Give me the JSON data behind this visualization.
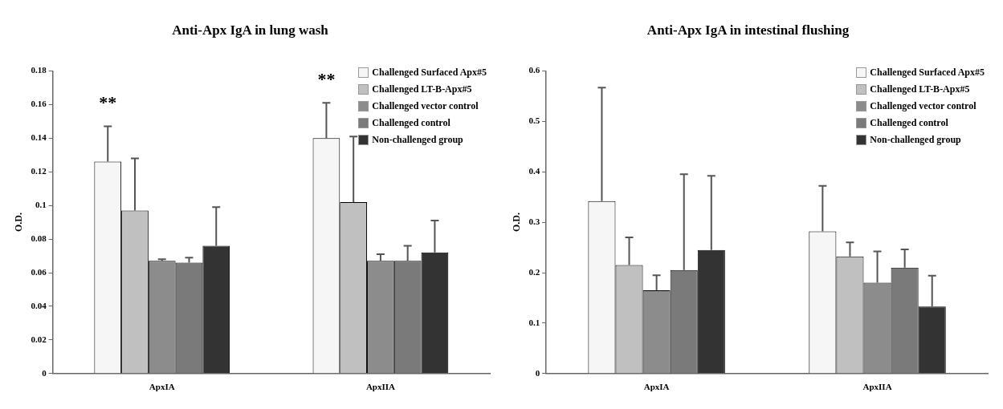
{
  "chart_data": [
    {
      "type": "bar",
      "title": "Anti-Apx IgA in lung wash",
      "ylabel": "O.D.",
      "categories": [
        "ApxIA",
        "ApxIIA"
      ],
      "ylim": [
        0,
        0.18
      ],
      "yticks": [
        0,
        0.02,
        0.04,
        0.06,
        0.08,
        0.1,
        0.12,
        0.14,
        0.16,
        0.18
      ],
      "grid": false,
      "legend": "top right",
      "series": [
        {
          "name": "Challenged Surfaced Apx#5",
          "color": "#f6f6f6",
          "values": [
            0.126,
            0.14
          ],
          "errors": [
            [
              0.126,
              0.147
            ],
            [
              0.14,
              0.161
            ]
          ]
        },
        {
          "name": "Challenged LT-B-Apx#5",
          "color": "#c0c0c0",
          "values": [
            0.097,
            0.102
          ],
          "errors": [
            [
              0.097,
              0.128
            ],
            [
              0.102,
              0.141
            ]
          ]
        },
        {
          "name": "Challenged vector control",
          "color": "#8c8c8c",
          "values": [
            0.067,
            0.067
          ],
          "errors": [
            [
              0.067,
              0.068
            ],
            [
              0.067,
              0.071
            ]
          ]
        },
        {
          "name": "Challenged control",
          "color": "#7a7a7a",
          "values": [
            0.066,
            0.067
          ],
          "errors": [
            [
              0.066,
              0.069
            ],
            [
              0.067,
              0.076
            ]
          ]
        },
        {
          "name": "Non-challenged group",
          "color": "#333333",
          "values": [
            0.076,
            0.072
          ],
          "errors": [
            [
              0.076,
              0.099
            ],
            [
              0.072,
              0.091
            ]
          ]
        }
      ],
      "annotations": [
        "**",
        "**"
      ]
    },
    {
      "type": "bar",
      "title": "Anti-Apx IgA in intestinal flushing",
      "ylabel": "O.D.",
      "categories": [
        "ApxIA",
        "ApxIIA"
      ],
      "ylim": [
        0,
        0.6
      ],
      "yticks": [
        0,
        0.1,
        0.2,
        0.3,
        0.4,
        0.5,
        0.6
      ],
      "grid": false,
      "legend": "top right",
      "series": [
        {
          "name": "Challenged Surfaced Apx#5",
          "color": "#f6f6f6",
          "values": [
            0.342,
            0.282
          ],
          "errors": [
            [
              0.342,
              0.567
            ],
            [
              0.282,
              0.372
            ]
          ]
        },
        {
          "name": "Challenged LT-B-Apx#5",
          "color": "#c0c0c0",
          "values": [
            0.215,
            0.232
          ],
          "errors": [
            [
              0.215,
              0.27
            ],
            [
              0.232,
              0.26
            ]
          ]
        },
        {
          "name": "Challenged vector control",
          "color": "#8c8c8c",
          "values": [
            0.165,
            0.18
          ],
          "errors": [
            [
              0.165,
              0.195
            ],
            [
              0.18,
              0.242
            ]
          ]
        },
        {
          "name": "Challenged control",
          "color": "#7a7a7a",
          "values": [
            0.205,
            0.21
          ],
          "errors": [
            [
              0.205,
              0.395
            ],
            [
              0.21,
              0.246
            ]
          ]
        },
        {
          "name": "Non-challenged group",
          "color": "#333333",
          "values": [
            0.245,
            0.133
          ],
          "errors": [
            [
              0.245,
              0.392
            ],
            [
              0.133,
              0.194
            ]
          ]
        }
      ]
    }
  ]
}
